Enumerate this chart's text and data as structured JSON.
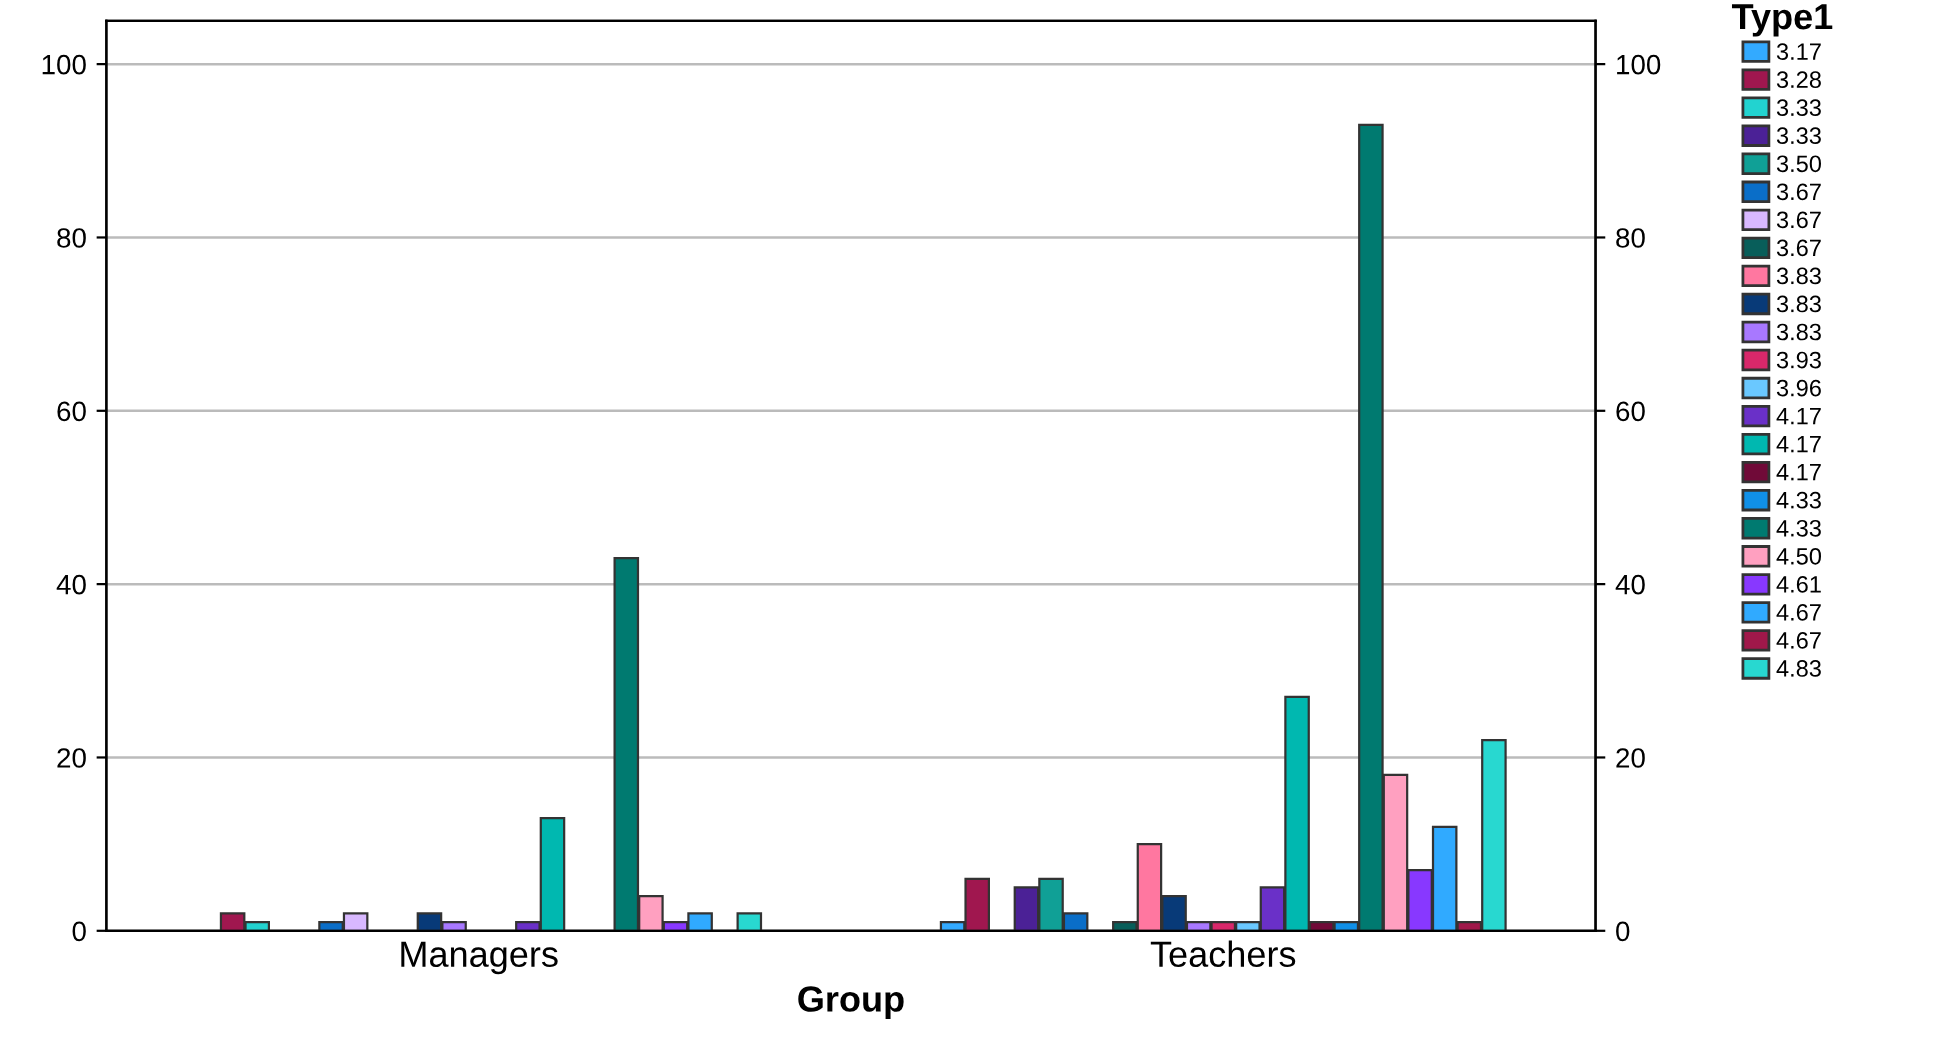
{
  "chart_data": {
    "type": "bar",
    "xlabel": "Group",
    "legend_title": "Type1",
    "categories": [
      "Managers",
      "Teachers"
    ],
    "ylim": [
      0,
      105
    ],
    "yticks": [
      0,
      20,
      40,
      60,
      80,
      100
    ],
    "y2lim": [
      0,
      105
    ],
    "y2ticks": [
      0,
      20,
      40,
      60,
      80,
      100
    ],
    "grid": "y",
    "legend": "right",
    "series": [
      {
        "name": "3.17",
        "color": "#33aaff",
        "values": [
          null,
          1
        ]
      },
      {
        "name": "3.28",
        "color": "#a0174f",
        "values": [
          2,
          6
        ]
      },
      {
        "name": "3.33",
        "color": "#22d3d0",
        "values": [
          1,
          null
        ]
      },
      {
        "name": "3.33",
        "color": "#4b2196",
        "values": [
          null,
          5
        ]
      },
      {
        "name": "3.50",
        "color": "#10a096",
        "values": [
          null,
          6
        ]
      },
      {
        "name": "3.67",
        "color": "#0a6ec8",
        "values": [
          1,
          2
        ]
      },
      {
        "name": "3.67",
        "color": "#d8b8ff",
        "values": [
          2,
          null
        ]
      },
      {
        "name": "3.67",
        "color": "#085e5a",
        "values": [
          null,
          1
        ]
      },
      {
        "name": "3.83",
        "color": "#ff77a0",
        "values": [
          null,
          10
        ]
      },
      {
        "name": "3.83",
        "color": "#083a78",
        "values": [
          2,
          4
        ]
      },
      {
        "name": "3.83",
        "color": "#a878ff",
        "values": [
          1,
          1
        ]
      },
      {
        "name": "3.93",
        "color": "#d8286a",
        "values": [
          null,
          1
        ]
      },
      {
        "name": "3.96",
        "color": "#6ac8ff",
        "values": [
          null,
          1
        ]
      },
      {
        "name": "4.17",
        "color": "#6a30c8",
        "values": [
          1,
          5
        ]
      },
      {
        "name": "4.17",
        "color": "#00b8b0",
        "values": [
          13,
          27
        ]
      },
      {
        "name": "4.17",
        "color": "#700a38",
        "values": [
          null,
          1
        ]
      },
      {
        "name": "4.33",
        "color": "#1090e8",
        "values": [
          null,
          1
        ]
      },
      {
        "name": "4.33",
        "color": "#007a70",
        "values": [
          43,
          93
        ]
      },
      {
        "name": "4.50",
        "color": "#ffa0c0",
        "values": [
          4,
          18
        ]
      },
      {
        "name": "4.61",
        "color": "#8838ff",
        "values": [
          1,
          7
        ]
      },
      {
        "name": "4.67",
        "color": "#30aaff",
        "values": [
          2,
          12
        ]
      },
      {
        "name": "4.67",
        "color": "#a0184a",
        "values": [
          null,
          1
        ]
      },
      {
        "name": "4.83",
        "color": "#28d8d0",
        "values": [
          2,
          22
        ]
      }
    ]
  }
}
